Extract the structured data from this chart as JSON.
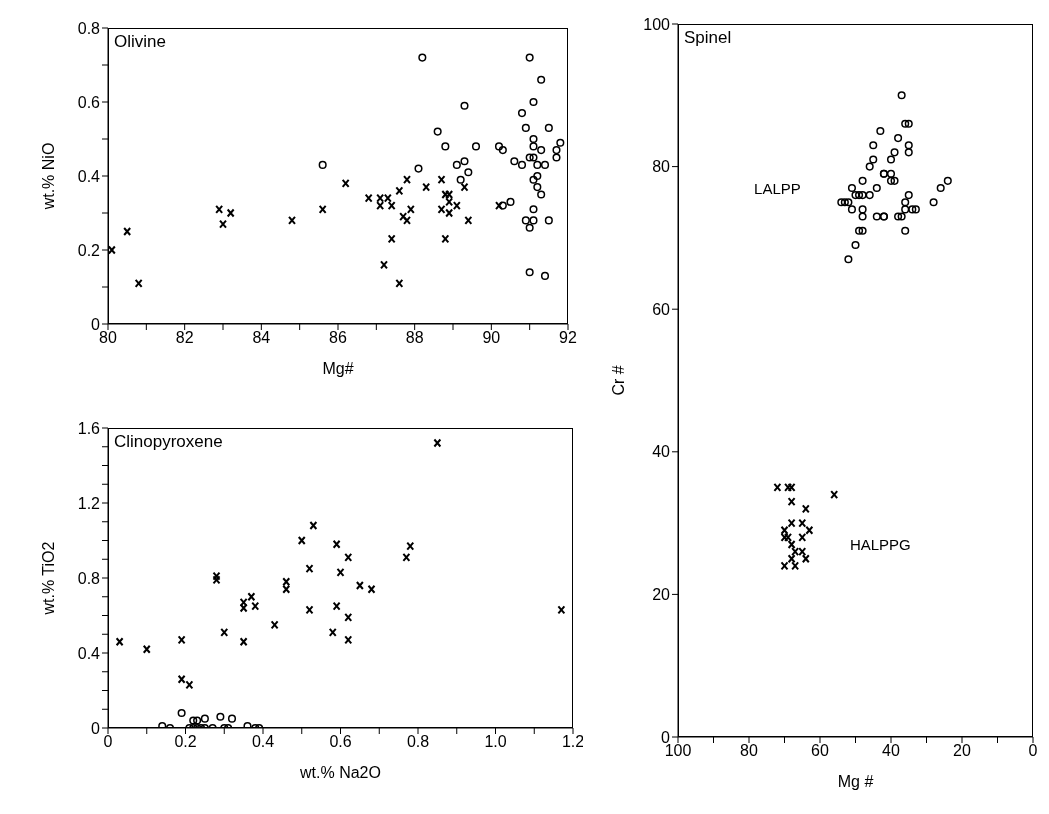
{
  "chart_data": [
    {
      "type": "scatter",
      "title": "Olivine",
      "xlabel": "Mg#",
      "ylabel": "wt.% NiO",
      "xlim": [
        80,
        92
      ],
      "ylim": [
        0,
        0.8
      ],
      "xticks": [
        80,
        {
          "value": 81,
          "label": null
        },
        82,
        {
          "value": 83,
          "label": null
        },
        84,
        {
          "value": 85,
          "label": null
        },
        86,
        {
          "value": 87,
          "label": null
        },
        88,
        {
          "value": 89,
          "label": null
        },
        90,
        {
          "value": 91,
          "label": null
        },
        92
      ],
      "yticks": [
        0,
        {
          "value": 0.1,
          "label": null
        },
        0.2,
        {
          "value": 0.3,
          "label": null
        },
        0.4,
        {
          "value": 0.5,
          "label": null
        },
        0.6,
        {
          "value": 0.7,
          "label": null
        },
        0.8
      ],
      "series": [
        {
          "marker": "cross",
          "color": "#000000",
          "x": [
            80.1,
            80.5,
            80.8,
            82.9,
            83.0,
            83.2,
            84.8,
            85.6,
            86.2,
            86.8,
            87.1,
            87.3,
            87.1,
            87.4,
            87.4,
            87.2,
            87.6,
            87.8,
            87.7,
            87.9,
            87.8,
            87.6,
            88.3,
            88.7,
            88.7,
            88.8,
            88.9,
            88.9,
            88.9,
            88.8,
            89.1,
            89.3,
            89.4,
            90.2
          ],
          "values": [
            0.2,
            0.25,
            0.11,
            0.31,
            0.27,
            0.3,
            0.28,
            0.31,
            0.38,
            0.34,
            0.34,
            0.34,
            0.32,
            0.32,
            0.23,
            0.16,
            0.36,
            0.39,
            0.29,
            0.31,
            0.28,
            0.11,
            0.37,
            0.39,
            0.31,
            0.35,
            0.35,
            0.33,
            0.3,
            0.23,
            0.32,
            0.37,
            0.28,
            0.32
          ]
        },
        {
          "marker": "circle",
          "color": "#000000",
          "x": [
            88.2,
            85.6,
            88.1,
            88.6,
            88.8,
            89.3,
            89.1,
            89.3,
            89.2,
            89.4,
            89.6,
            90.2,
            90.3,
            90.3,
            90.5,
            90.6,
            90.8,
            90.8,
            90.9,
            91.0,
            91.0,
            91.1,
            91.1,
            91.1,
            91.1,
            91.2,
            91.1,
            91.2,
            91.3,
            91.3,
            91.2,
            91.4,
            91.3,
            91.5,
            91.1,
            91.1,
            90.9,
            91.0,
            91.5,
            91.0,
            91.4,
            91.8,
            91.7,
            91.7
          ],
          "values": [
            0.72,
            0.43,
            0.42,
            0.52,
            0.48,
            0.59,
            0.43,
            0.44,
            0.39,
            0.41,
            0.48,
            0.48,
            0.47,
            0.32,
            0.33,
            0.44,
            0.43,
            0.57,
            0.53,
            0.72,
            0.45,
            0.5,
            0.6,
            0.48,
            0.45,
            0.4,
            0.39,
            0.37,
            0.66,
            0.47,
            0.43,
            0.43,
            0.35,
            0.53,
            0.31,
            0.28,
            0.28,
            0.26,
            0.28,
            0.14,
            0.13,
            0.49,
            0.47,
            0.45
          ]
        }
      ]
    },
    {
      "type": "scatter",
      "title": "Clinopyroxene",
      "xlabel": "wt.% Na2O",
      "ylabel": "wt.% TiO2",
      "xlim": [
        0,
        1.2
      ],
      "ylim": [
        0,
        1.6
      ],
      "xticks": [
        0,
        {
          "value": 0.1,
          "label": null
        },
        0.2,
        {
          "value": 0.3,
          "label": null
        },
        0.4,
        {
          "value": 0.5,
          "label": null
        },
        0.6,
        {
          "value": 0.7,
          "label": null
        },
        0.8,
        {
          "value": 0.9,
          "label": null
        },
        {
          "value": 1,
          "label": "1.0"
        },
        {
          "value": 1.1,
          "label": null
        },
        1.2
      ],
      "yticks": [
        0,
        {
          "value": 0.1,
          "label": null
        },
        {
          "value": 0.2,
          "label": null
        },
        {
          "value": 0.3,
          "label": null
        },
        0.4,
        {
          "value": 0.5,
          "label": null
        },
        {
          "value": 0.6,
          "label": null
        },
        {
          "value": 0.7,
          "label": null
        },
        0.8,
        {
          "value": 0.9,
          "label": null
        },
        {
          "value": 1,
          "label": null
        },
        {
          "value": 1.1,
          "label": null
        },
        1.2,
        {
          "value": 1.3,
          "label": null
        },
        {
          "value": 1.4,
          "label": null
        },
        {
          "value": 1.5,
          "label": null
        },
        1.6
      ],
      "series": [
        {
          "marker": "cross",
          "color": "#000000",
          "x": [
            0.03,
            0.1,
            0.19,
            0.19,
            0.21,
            0.28,
            0.28,
            0.3,
            0.35,
            0.35,
            0.37,
            0.38,
            0.35,
            0.43,
            0.46,
            0.46,
            0.5,
            0.52,
            0.53,
            0.52,
            0.58,
            0.59,
            0.59,
            0.6,
            0.62,
            0.62,
            0.62,
            0.65,
            0.68,
            0.77,
            0.78,
            0.85,
            1.17
          ],
          "values": [
            0.46,
            0.42,
            0.47,
            0.26,
            0.23,
            0.81,
            0.79,
            0.51,
            0.64,
            0.67,
            0.7,
            0.65,
            0.46,
            0.55,
            0.78,
            0.74,
            1.0,
            0.85,
            1.08,
            0.63,
            0.51,
            0.98,
            0.65,
            0.83,
            0.59,
            0.47,
            0.91,
            0.76,
            0.74,
            0.91,
            0.97,
            1.52,
            0.63
          ]
        },
        {
          "marker": "circle",
          "color": "#000000",
          "x": [
            0.14,
            0.16,
            0.19,
            0.22,
            0.23,
            0.25,
            0.29,
            0.32,
            0.36,
            0.21,
            0.22,
            0.23,
            0.24,
            0.25,
            0.27,
            0.3,
            0.31,
            0.38,
            0.39
          ],
          "values": [
            0.01,
            0,
            0.08,
            0.04,
            0.04,
            0.05,
            0.06,
            0.05,
            0.01,
            0,
            0,
            0,
            0,
            0,
            0,
            0,
            0,
            0,
            0
          ]
        }
      ]
    },
    {
      "type": "scatter",
      "title": "Spinel",
      "xlabel": "Mg #",
      "ylabel": "Cr #",
      "xlim": [
        100,
        0
      ],
      "ylim": [
        0,
        100
      ],
      "xticks": [
        100,
        {
          "value": 90,
          "label": null
        },
        80,
        {
          "value": 70,
          "label": null
        },
        60,
        {
          "value": 50,
          "label": null
        },
        40,
        {
          "value": 30,
          "label": null
        },
        20,
        {
          "value": 10,
          "label": null
        },
        0
      ],
      "yticks": [
        0,
        20,
        40,
        60,
        80,
        100
      ],
      "annotations": [
        "LALPP",
        "HALPPG"
      ],
      "series": [
        {
          "marker": "circle",
          "color": "#000000",
          "x": [
            37,
            43,
            36,
            35,
            45,
            38,
            35,
            35,
            39,
            45,
            46,
            40,
            40,
            42,
            42,
            39,
            40,
            48,
            51,
            44,
            49,
            48,
            46,
            50,
            52,
            51,
            54,
            53,
            48,
            48,
            49,
            48,
            50,
            52,
            44,
            42,
            42,
            38,
            37,
            36,
            35,
            36,
            34,
            33,
            36,
            28,
            26,
            24
          ],
          "values": [
            90,
            85,
            86,
            86,
            83,
            84,
            83,
            82,
            82,
            81,
            80,
            81,
            79,
            79,
            79,
            78,
            78,
            78,
            77,
            77,
            76,
            76,
            76,
            76,
            75,
            74,
            75,
            75,
            74,
            73,
            71,
            71,
            69,
            67,
            73,
            73,
            73,
            73,
            73,
            75,
            76,
            74,
            74,
            74,
            71,
            75,
            77,
            78
          ]
        },
        {
          "marker": "cross",
          "color": "#000000",
          "x": [
            72,
            69,
            68,
            68,
            56,
            64,
            63,
            65,
            68,
            70,
            70,
            69,
            68,
            67,
            68,
            65,
            65,
            64,
            70,
            67
          ],
          "values": [
            35,
            35,
            35,
            33,
            34,
            32,
            29,
            30,
            30,
            29,
            28,
            28,
            27,
            26,
            25,
            28,
            26,
            25,
            24,
            24
          ]
        }
      ]
    }
  ]
}
